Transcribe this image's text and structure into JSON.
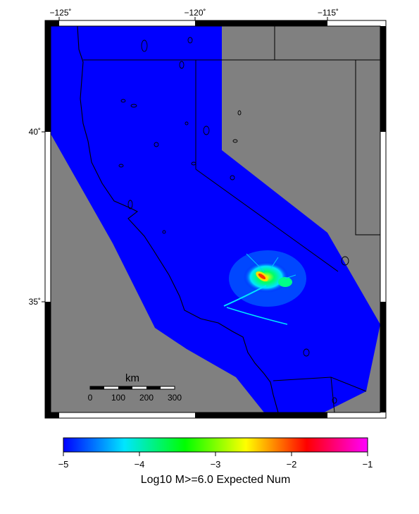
{
  "map": {
    "region": "California",
    "background_color": "#808080",
    "hazard_fill_color": "#0000ff",
    "longitude_ticks": [
      {
        "value": -125,
        "label": "−125˚"
      },
      {
        "value": -120,
        "label": "−120˚"
      },
      {
        "value": -115,
        "label": "−115˚"
      }
    ],
    "latitude_ticks": [
      {
        "value": 40,
        "label": "40˚"
      },
      {
        "value": 35,
        "label": "35˚"
      }
    ]
  },
  "scale_bar": {
    "title": "km",
    "labels": [
      "0",
      "100",
      "200",
      "300"
    ]
  },
  "colorbar": {
    "title": "Log10 M>=6.0 Expected Num",
    "range": [
      -5,
      -1
    ],
    "ticks": [
      "−5",
      "−4",
      "−3",
      "−2",
      "−1"
    ],
    "colors": [
      "#0000ff",
      "#00e5ff",
      "#00ff00",
      "#ffff00",
      "#ff0000",
      "#ff00ff"
    ]
  }
}
